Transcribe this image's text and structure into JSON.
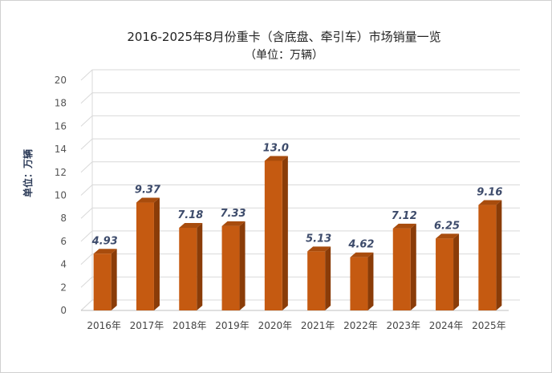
{
  "chart_data": {
    "type": "bar",
    "title": "2016-2025年8月份重卡（含底盘、牵引车）市场销量一览",
    "subtitle": "（单位：万辆）",
    "xlabel": "",
    "ylabel": "单位：万辆",
    "categories": [
      "2016年",
      "2017年",
      "2018年",
      "2019年",
      "2020年",
      "2021年",
      "2022年",
      "2023年",
      "2024年",
      "2025年"
    ],
    "values": [
      4.93,
      9.37,
      7.18,
      7.33,
      13.0,
      5.13,
      4.62,
      7.12,
      6.25,
      9.16
    ],
    "data_labels": [
      "4.93",
      "9.37",
      "7.18",
      "7.33",
      "13.0",
      "5.13",
      "4.62",
      "7.12",
      "6.25",
      "9.16"
    ],
    "ylim": [
      0,
      20
    ],
    "yticks": [
      "0",
      "2",
      "4",
      "6",
      "8",
      "10",
      "12",
      "14",
      "16",
      "18",
      "20"
    ],
    "grid": true,
    "legend": "none",
    "colors": {
      "bar_front": "#c55a11",
      "bar_side": "#8a3c08",
      "bar_top": "#a84c0d",
      "grid": "#d9d9d9",
      "wall": "#ffffff"
    }
  }
}
